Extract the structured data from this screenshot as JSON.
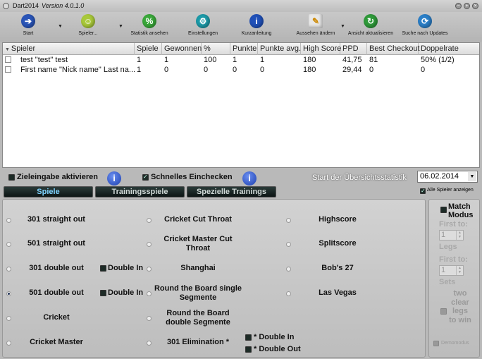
{
  "window": {
    "title": "Dart2014",
    "version": "Version 4.0.1.0"
  },
  "toolbar": [
    {
      "label": "Start",
      "icon": "arrow-right-icon",
      "color": "#2a55b8",
      "glyph": "➔"
    },
    {
      "label": "Spieler...",
      "icon": "user-icon",
      "color": "#a9c93a",
      "glyph": "☺"
    },
    {
      "label": "Statistik ansehen",
      "icon": "percent-icon",
      "color": "#3aa83a",
      "glyph": "%"
    },
    {
      "label": "Einstellungen",
      "icon": "gear-icon",
      "color": "#1c9aa8",
      "glyph": "⚙"
    },
    {
      "label": "Kurzanleitung",
      "icon": "info-icon",
      "color": "#2050b8",
      "glyph": "i"
    },
    {
      "label": "Aussehen ändern",
      "icon": "paint-brush-icon",
      "color": "#e8e8e8",
      "glyph": "✎"
    },
    {
      "label": "Ansicht aktualisieren",
      "icon": "refresh-icon",
      "color": "#2f9a3a",
      "glyph": "↻"
    },
    {
      "label": "Suche nach Updates",
      "icon": "update-icon",
      "color": "#2b7fc8",
      "glyph": "⟳"
    }
  ],
  "table": {
    "columns": [
      "Spieler",
      "Spiele",
      "Gewonnen",
      "%",
      "Punkte",
      "Punkte avg.",
      "High Score",
      "PPD",
      "Best Checkout",
      "Doppelrate"
    ],
    "rows": [
      [
        "test \"test\" test",
        "1",
        "1",
        "100",
        "1",
        "1",
        "180",
        "41,75",
        "81",
        "50% (1/2)"
      ],
      [
        "First name \"Nick name\" Last na...",
        "1",
        "0",
        "0",
        "0",
        "0",
        "180",
        "29,44",
        "0",
        "0"
      ]
    ]
  },
  "options": {
    "target_input": "Zieleingabe aktivieren",
    "quick_checkin": "Schnelles Einchecken",
    "stats_start_label": "Start der Übersichtsstatistik",
    "stats_start_date": "06.02.2014",
    "show_all_players": "Alle Spieler anzeigen"
  },
  "tabs": [
    "Spiele",
    "Trainingsspiele",
    "Spezielle Trainings"
  ],
  "games": {
    "col1": [
      "301 straight out",
      "501 straight out",
      "301 double out",
      "501 double out",
      "Cricket",
      "Cricket Master"
    ],
    "col2": [
      "Cricket Cut Throat",
      "Cricket Master Cut Throat",
      "Shanghai",
      "Round the Board single Segmente",
      "Round the Board double Segmente",
      "301 Elimination *"
    ],
    "col3": [
      "Highscore",
      "Splitscore",
      "Bob's 27",
      "Las Vegas"
    ],
    "double_in": "Double In",
    "elim_double_in": "* Double In",
    "elim_double_out": "* Double Out",
    "selected": "501 double out"
  },
  "match": {
    "label": "Match Modus",
    "first_to_legs": "First to:",
    "legs_value": "1",
    "legs": "Legs",
    "first_to_sets": "First to:",
    "sets_value": "1",
    "sets": "Sets",
    "two_clear": "two clear legs to win",
    "demo": "Demomodus"
  }
}
